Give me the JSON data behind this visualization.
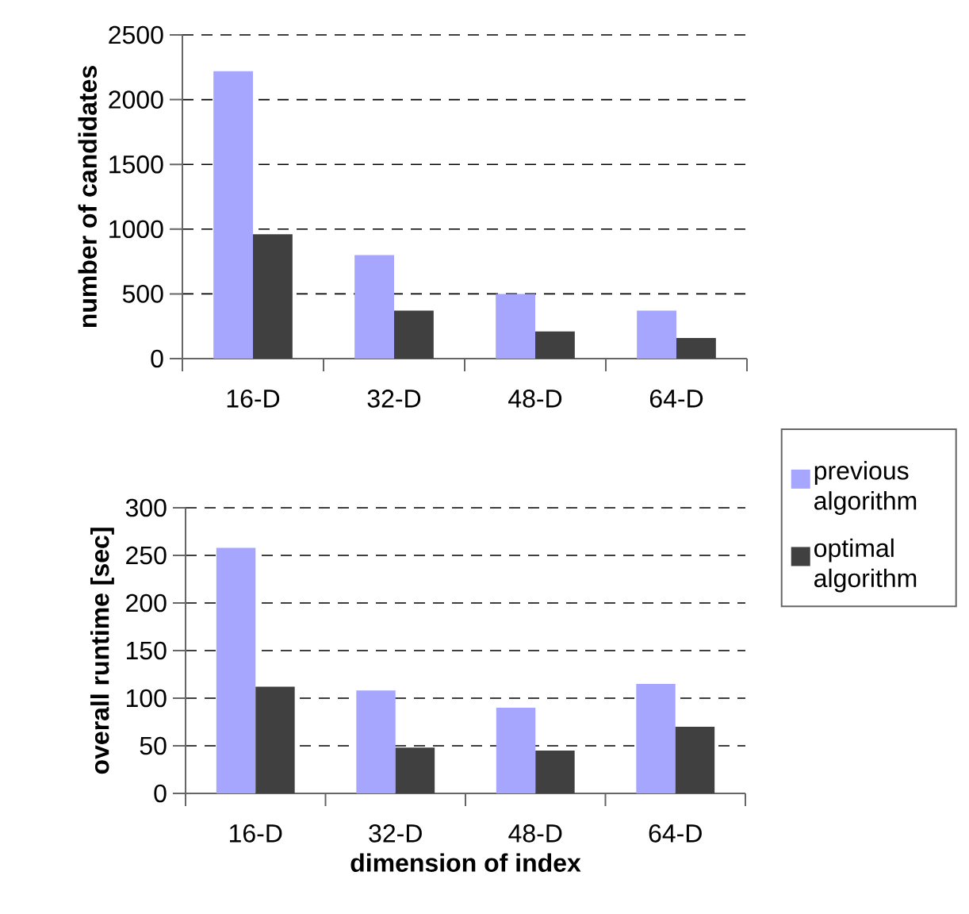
{
  "chart_data": [
    {
      "type": "bar",
      "ylabel": "number of candidates",
      "categories": [
        "16-D",
        "32-D",
        "48-D",
        "64-D"
      ],
      "series": [
        {
          "name": "previous algorithm",
          "color": "#a6a6ff",
          "values": [
            2220,
            800,
            500,
            370
          ]
        },
        {
          "name": "optimal algorithm",
          "color": "#404040",
          "values": [
            960,
            370,
            210,
            160
          ]
        }
      ],
      "ylim": [
        0,
        2500
      ],
      "yticks": [
        0,
        500,
        1000,
        1500,
        2000,
        2500
      ],
      "grid": "y",
      "legend": "right"
    },
    {
      "type": "bar",
      "xlabel": "dimension of index",
      "ylabel": "overall runtime [sec]",
      "categories": [
        "16-D",
        "32-D",
        "48-D",
        "64-D"
      ],
      "series": [
        {
          "color": "#a6a6ff",
          "values": [
            258,
            108,
            90,
            115
          ]
        },
        {
          "color": "#404040",
          "values": [
            112,
            48,
            45,
            70
          ]
        }
      ],
      "ylim": [
        0,
        300
      ],
      "yticks": [
        0,
        50,
        100,
        150,
        200,
        250,
        300
      ],
      "grid": "y"
    }
  ]
}
